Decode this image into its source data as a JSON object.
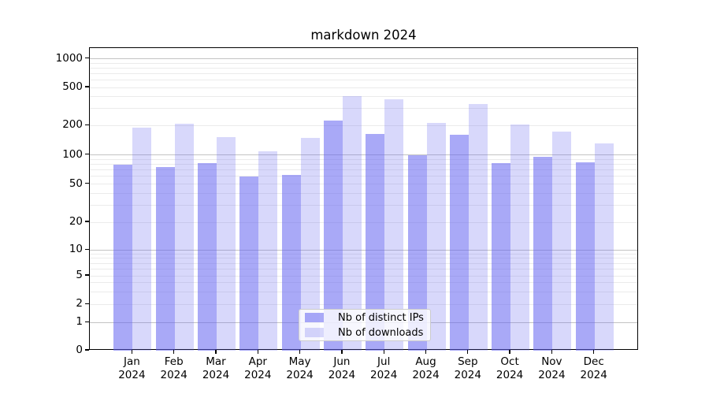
{
  "title": "markdown 2024",
  "legend": {
    "items": [
      {
        "label": "Nb of distinct IPs",
        "series_key": "distinct-ips"
      },
      {
        "label": "Nb of downloads",
        "series_key": "downloads"
      }
    ]
  },
  "colors": {
    "bar_base": "#6262f0",
    "bar_dark_alpha": 0.55,
    "bar_light_alpha": 0.25,
    "grid_major": "#c3c3c3",
    "grid_minor": "#ebebeb",
    "axis": "#000000",
    "legend_border": "#cccccc"
  },
  "axes": {
    "y_ticks": [
      0,
      1,
      2,
      5,
      10,
      20,
      50,
      100,
      200,
      500,
      1000
    ],
    "y_major_grid": [
      1,
      10,
      100,
      1000
    ],
    "y_minor_grid": [
      2,
      3,
      4,
      5,
      6,
      7,
      8,
      9,
      20,
      30,
      40,
      50,
      60,
      70,
      80,
      90,
      200,
      300,
      400,
      500,
      600,
      700,
      800,
      900
    ]
  },
  "chart_data": {
    "type": "bar",
    "title": "markdown 2024",
    "xlabel": "",
    "ylabel": "",
    "yscale": "symlog",
    "ylim": [
      0,
      1300
    ],
    "grid": "both",
    "legend_position": "lower center",
    "categories": [
      "Jan 2024",
      "Feb 2024",
      "Mar 2024",
      "Apr 2024",
      "May 2024",
      "Jun 2024",
      "Jul 2024",
      "Aug 2024",
      "Sep 2024",
      "Oct 2024",
      "Nov 2024",
      "Dec 2024"
    ],
    "series": [
      {
        "name": "Nb of distinct IPs",
        "values": [
          80,
          75,
          83,
          60,
          62,
          225,
          165,
          100,
          160,
          82,
          96,
          85
        ]
      },
      {
        "name": "Nb of downloads",
        "values": [
          190,
          210,
          153,
          110,
          149,
          410,
          375,
          215,
          335,
          205,
          175,
          132
        ]
      }
    ]
  }
}
